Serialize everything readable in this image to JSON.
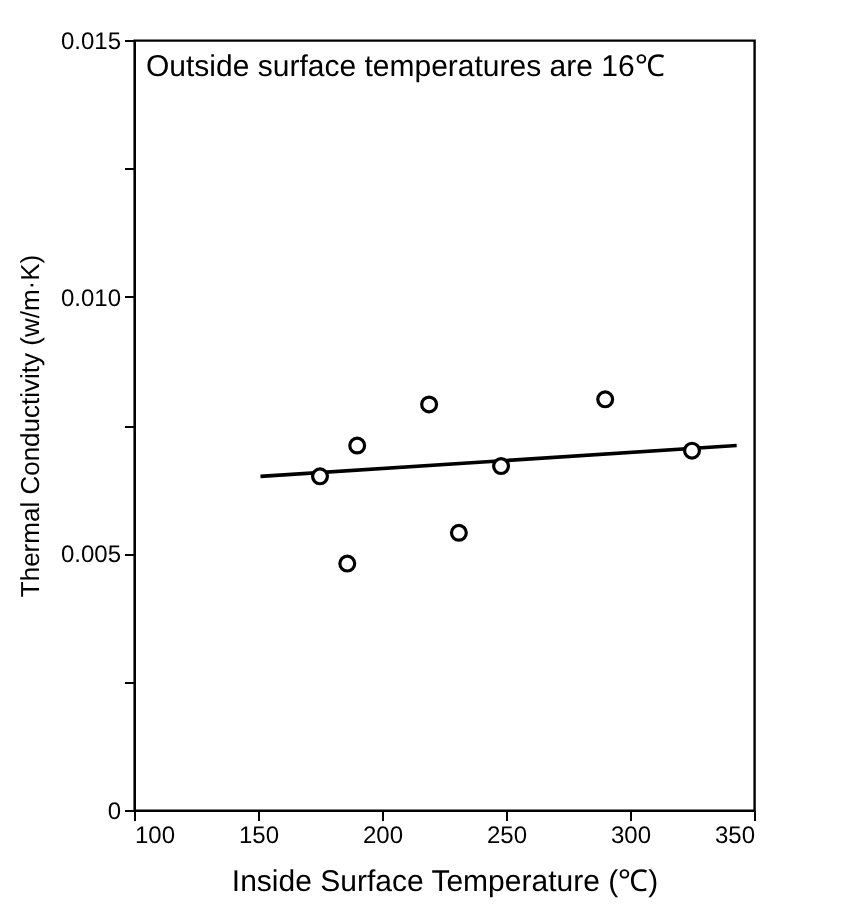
{
  "chart_data": {
    "type": "scatter",
    "xlabel": "Inside Surface Temperature (℃)",
    "ylabel": "Thermal Conductivity (w/m·K)",
    "annotations": [
      "Outside surface temperatures are 16℃"
    ],
    "series": [
      {
        "color": "#000000",
        "marker": "circle",
        "x": [
          175,
          190,
          186,
          219,
          231,
          248,
          290,
          325
        ],
        "values": [
          0.0065,
          0.0071,
          0.0048,
          0.0079,
          0.0054,
          0.0067,
          0.008,
          0.007
        ]
      },
      {
        "type": "line",
        "color": "#000000",
        "line_style": "solid",
        "x": [
          151,
          343
        ],
        "values": [
          0.0065,
          0.0071
        ]
      }
    ],
    "xlim": [
      100,
      350
    ],
    "xticks": [
      100,
      150,
      200,
      250,
      300,
      350
    ],
    "ylim": [
      0,
      0.015
    ],
    "yticks": [
      "0",
      {
        "value": 0.0025,
        "label": null
      },
      {
        "value": 0.005,
        "label": "0.005"
      },
      {
        "value": 0.0075,
        "label": null
      },
      {
        "value": 0.01,
        "label": "0.010"
      },
      {
        "value": 0.0125,
        "label": null
      },
      {
        "value": 0.015,
        "label": "0.015"
      }
    ],
    "grid": false
  }
}
